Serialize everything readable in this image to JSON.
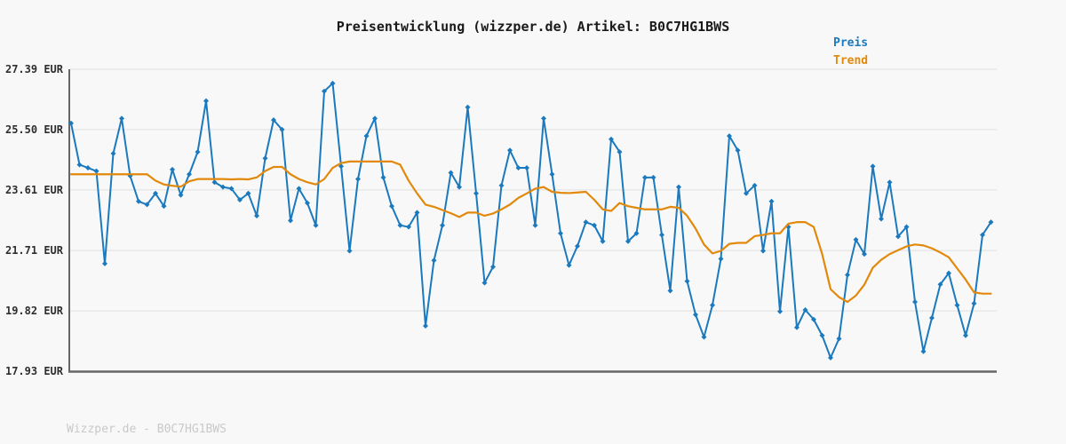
{
  "title": "Preisentwicklung (wizzper.de) Artikel: B0C7HG1BWS",
  "legend": {
    "items": [
      {
        "label": "Preis",
        "color": "#1b79be"
      },
      {
        "label": "Trend",
        "color": "#e2890c"
      }
    ]
  },
  "footer": "Wizzper.de - B0C7HG1BWS",
  "colors": {
    "background": "#f8f8f8",
    "gridline": "#e0e0e0",
    "axis_spine": "#666666",
    "price_line": "#1b79be",
    "trend_line": "#e2890c",
    "footer_text": "#c9c9c9"
  },
  "chart_data": {
    "type": "line",
    "title": "Preisentwicklung (wizzper.de) Artikel: B0C7HG1BWS",
    "xlabel": "",
    "ylabel": "",
    "ylim": [
      17.93,
      27.39
    ],
    "ytick_labels": [
      "27.39 EUR",
      "25.50 EUR",
      "23.61 EUR",
      "21.71 EUR",
      "19.82 EUR",
      "17.93 EUR"
    ],
    "ytick_values": [
      27.39,
      25.5,
      23.61,
      21.71,
      19.82,
      17.93
    ],
    "grid": true,
    "legend_position": "top-right",
    "x_unit": "time (no x tick labels shown)",
    "series": [
      {
        "name": "Preis",
        "color": "#1b79be",
        "marker": "diamond",
        "values": [
          25.7,
          24.4,
          24.3,
          24.2,
          21.3,
          24.75,
          25.85,
          24.05,
          23.25,
          23.15,
          23.5,
          23.1,
          24.25,
          23.45,
          24.1,
          24.8,
          26.4,
          23.85,
          23.7,
          23.65,
          23.3,
          23.5,
          22.8,
          24.6,
          25.8,
          25.5,
          22.65,
          23.65,
          23.2,
          22.5,
          26.7,
          26.95,
          24.35,
          21.7,
          23.95,
          25.3,
          25.85,
          24.0,
          23.1,
          22.5,
          22.45,
          22.9,
          19.35,
          21.4,
          22.5,
          24.15,
          23.7,
          26.2,
          23.5,
          20.7,
          21.2,
          23.75,
          24.85,
          24.3,
          24.3,
          22.5,
          25.85,
          24.1,
          22.25,
          21.25,
          21.85,
          22.6,
          22.5,
          22.0,
          25.2,
          24.8,
          22.0,
          22.25,
          24.0,
          24.0,
          22.2,
          20.45,
          23.7,
          20.75,
          19.7,
          19.0,
          20.0,
          21.45,
          25.3,
          24.85,
          23.5,
          23.75,
          21.7,
          23.25,
          19.8,
          22.45,
          19.3,
          19.85,
          19.55,
          19.05,
          18.35,
          18.95,
          20.95,
          22.05,
          21.6,
          24.35,
          22.7,
          23.85,
          22.15,
          22.45,
          20.1,
          18.55,
          19.6,
          20.65,
          21.0,
          20.0,
          19.05,
          20.05,
          22.2,
          22.6
        ]
      },
      {
        "name": "Trend",
        "color": "#e2890c",
        "marker": "none",
        "values": [
          24.1,
          24.1,
          24.1,
          24.1,
          24.1,
          24.1,
          24.1,
          24.1,
          24.1,
          24.1,
          23.9,
          23.78,
          23.74,
          23.71,
          23.88,
          23.95,
          23.95,
          23.95,
          23.95,
          23.94,
          23.95,
          23.94,
          24.0,
          24.2,
          24.33,
          24.33,
          24.1,
          23.95,
          23.85,
          23.78,
          23.95,
          24.3,
          24.45,
          24.5,
          24.5,
          24.5,
          24.5,
          24.5,
          24.5,
          24.4,
          23.9,
          23.5,
          23.15,
          23.08,
          22.98,
          22.88,
          22.76,
          22.9,
          22.9,
          22.8,
          22.87,
          23.0,
          23.15,
          23.36,
          23.5,
          23.65,
          23.7,
          23.55,
          23.52,
          23.51,
          23.53,
          23.55,
          23.3,
          23.0,
          22.95,
          23.2,
          23.1,
          23.05,
          23.0,
          23.0,
          23.0,
          23.08,
          23.05,
          22.8,
          22.4,
          21.9,
          21.62,
          21.7,
          21.92,
          21.95,
          21.95,
          22.16,
          22.2,
          22.25,
          22.25,
          22.55,
          22.6,
          22.6,
          22.45,
          21.6,
          20.5,
          20.25,
          20.1,
          20.3,
          20.64,
          21.17,
          21.42,
          21.6,
          21.72,
          21.84,
          21.9,
          21.87,
          21.78,
          21.65,
          21.5,
          21.15,
          20.8,
          20.4,
          20.36,
          20.36
        ]
      }
    ]
  }
}
